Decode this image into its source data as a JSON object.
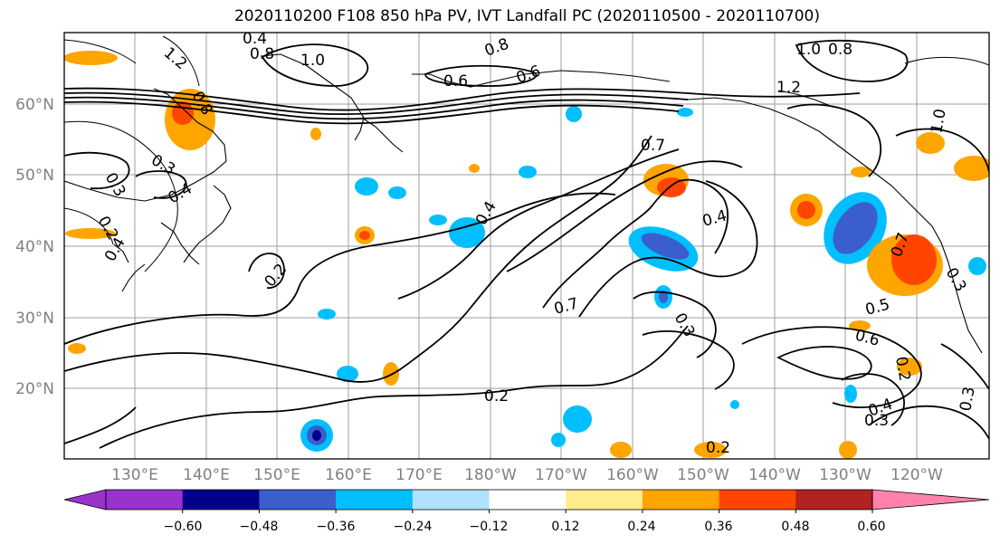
{
  "title": "2020110200 F108 850 hPa PV, IVT Landfall PC (2020110500 - 2020110700)",
  "map": {
    "lat_labels": [
      "20°N",
      "30°N",
      "40°N",
      "50°N",
      "60°N"
    ],
    "lon_labels": [
      "130°E",
      "140°E",
      "150°E",
      "160°E",
      "170°E",
      "180°W",
      "170°W",
      "160°W",
      "150°W",
      "140°W",
      "130°W",
      "120°W"
    ]
  },
  "contour_labels": [
    "1.2",
    "0.4",
    "0.8",
    "1.0",
    "0.8",
    "0.6",
    "0.8",
    "1.0",
    "0.8",
    "0.6",
    "0.7",
    "0.3",
    "0.3",
    "0.4",
    "0.2",
    "0.4",
    "0.2",
    "0.4",
    "0.7",
    "0.4",
    "0.3",
    "0.7",
    "0.3",
    "0.5",
    "0.6",
    "0.2",
    "0.4",
    "0.3",
    "0.3",
    "0.2",
    "0.2",
    "1.2",
    "1.0"
  ],
  "colorbar": {
    "ticks": [
      "−0.60",
      "−0.48",
      "−0.36",
      "−0.24",
      "−0.12",
      "0.12",
      "0.24",
      "0.36",
      "0.48",
      "0.60"
    ],
    "colors": [
      "#9a32cd",
      "#00008b",
      "#3a5fcd",
      "#00bfff",
      "#b0e2ff",
      "#ffffff",
      "#ffec8b",
      "#ffa500",
      "#ff4500",
      "#b22222",
      "#ff82ab"
    ]
  }
}
